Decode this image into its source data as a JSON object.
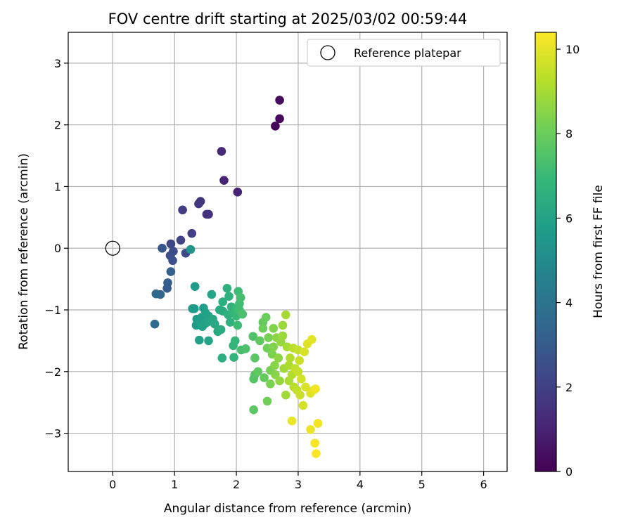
{
  "chart_data": {
    "type": "scatter",
    "title": "FOV centre drift starting at 2025/03/02 00:59:44",
    "xlabel": "Angular distance from reference (arcmin)",
    "ylabel": "Rotation from reference (arcmin)",
    "xlim": [
      -0.72,
      6.38
    ],
    "ylim": [
      -3.62,
      3.5
    ],
    "xticks": [
      0,
      1,
      2,
      3,
      4,
      5,
      6
    ],
    "yticks": [
      -3,
      -2,
      -1,
      0,
      1,
      2,
      3
    ],
    "grid": true,
    "legend": {
      "position": "top-right",
      "entries": [
        "Reference platepar"
      ]
    },
    "reference_point": {
      "x": 0,
      "y": 0,
      "label": "Reference platepar"
    },
    "colorbar": {
      "label": "Hours from first FF file",
      "colormap": "viridis",
      "range": [
        0,
        10.4
      ],
      "ticks": [
        0,
        2,
        4,
        6,
        8,
        10
      ]
    },
    "points": [
      [
        2.63,
        1.98,
        0.1
      ],
      [
        2.7,
        2.1,
        0.2
      ],
      [
        2.7,
        2.4,
        0.3
      ],
      [
        2.02,
        0.91,
        1.0
      ],
      [
        1.8,
        1.1,
        1.1
      ],
      [
        1.76,
        1.57,
        1.2
      ],
      [
        1.55,
        0.55,
        1.4
      ],
      [
        1.52,
        0.55,
        1.5
      ],
      [
        1.42,
        0.76,
        1.6
      ],
      [
        1.39,
        0.72,
        1.7
      ],
      [
        1.13,
        0.62,
        1.9
      ],
      [
        1.28,
        0.24,
        2.0
      ],
      [
        1.1,
        0.13,
        2.1
      ],
      [
        0.94,
        0.07,
        2.2
      ],
      [
        1.18,
        -0.08,
        2.3
      ],
      [
        0.98,
        -0.05,
        2.4
      ],
      [
        0.93,
        -0.12,
        2.5
      ],
      [
        0.97,
        -0.2,
        2.6
      ],
      [
        0.8,
        0.0,
        2.8
      ],
      [
        0.88,
        -0.65,
        3.0
      ],
      [
        0.89,
        -0.56,
        3.1
      ],
      [
        0.94,
        -0.38,
        3.2
      ],
      [
        0.77,
        -0.75,
        3.3
      ],
      [
        0.7,
        -0.74,
        3.5
      ],
      [
        0.68,
        -1.23,
        3.6
      ],
      [
        1.26,
        -0.02,
        5.4
      ],
      [
        1.33,
        -0.62,
        5.6
      ],
      [
        1.29,
        -0.98,
        5.6
      ],
      [
        1.32,
        -0.98,
        5.7
      ],
      [
        1.36,
        -1.15,
        5.7
      ],
      [
        1.35,
        -1.25,
        5.7
      ],
      [
        1.4,
        -1.2,
        5.8
      ],
      [
        1.44,
        -1.12,
        5.8
      ],
      [
        1.47,
        -0.97,
        5.8
      ],
      [
        1.45,
        -1.27,
        5.9
      ],
      [
        1.4,
        -1.49,
        5.9
      ],
      [
        1.5,
        -1.05,
        5.9
      ],
      [
        1.5,
        -1.22,
        6.0
      ],
      [
        1.55,
        -1.1,
        6.0
      ],
      [
        1.53,
        -1.2,
        6.1
      ],
      [
        1.55,
        -1.5,
        6.1
      ],
      [
        1.6,
        -0.75,
        6.1
      ],
      [
        1.62,
        -1.15,
        6.2
      ],
      [
        1.65,
        -1.23,
        6.2
      ],
      [
        1.7,
        -1.35,
        6.3
      ],
      [
        1.73,
        -1.0,
        6.3
      ],
      [
        1.75,
        -1.32,
        6.4
      ],
      [
        1.78,
        -1.02,
        6.4
      ],
      [
        1.78,
        -0.87,
        6.5
      ],
      [
        1.77,
        -1.78,
        6.5
      ],
      [
        1.85,
        -0.65,
        6.6
      ],
      [
        1.88,
        -0.78,
        6.6
      ],
      [
        1.87,
        -1.08,
        6.6
      ],
      [
        1.9,
        -1.2,
        6.7
      ],
      [
        1.92,
        -0.95,
        6.7
      ],
      [
        1.95,
        -1.05,
        6.8
      ],
      [
        1.95,
        -1.58,
        6.8
      ],
      [
        1.96,
        -1.77,
        6.8
      ],
      [
        1.98,
        -1.5,
        6.9
      ],
      [
        2.0,
        -0.98,
        7.0
      ],
      [
        2.0,
        -1.1,
        7.0
      ],
      [
        2.02,
        -1.25,
        7.1
      ],
      [
        2.03,
        -0.7,
        7.1
      ],
      [
        2.05,
        -0.9,
        7.2
      ],
      [
        2.05,
        -1.0,
        7.2
      ],
      [
        2.07,
        -0.8,
        7.3
      ],
      [
        2.08,
        -1.65,
        7.3
      ],
      [
        2.1,
        -1.07,
        7.4
      ],
      [
        2.15,
        -1.63,
        7.4
      ],
      [
        2.27,
        -1.43,
        7.5
      ],
      [
        2.28,
        -2.12,
        7.6
      ],
      [
        2.3,
        -2.05,
        7.6
      ],
      [
        2.28,
        -2.62,
        7.7
      ],
      [
        2.3,
        -1.78,
        7.7
      ],
      [
        2.35,
        -2.0,
        7.8
      ],
      [
        2.38,
        -1.5,
        7.8
      ],
      [
        2.43,
        -1.2,
        7.9
      ],
      [
        2.45,
        -2.1,
        7.9
      ],
      [
        2.43,
        -1.3,
        8.0
      ],
      [
        2.48,
        -1.12,
        8.0
      ],
      [
        2.5,
        -1.62,
        8.1
      ],
      [
        2.5,
        -2.48,
        8.1
      ],
      [
        2.52,
        -1.45,
        8.2
      ],
      [
        2.55,
        -1.98,
        8.2
      ],
      [
        2.55,
        -2.2,
        8.3
      ],
      [
        2.58,
        -1.72,
        8.3
      ],
      [
        2.6,
        -1.3,
        8.4
      ],
      [
        2.6,
        -1.6,
        8.4
      ],
      [
        2.62,
        -1.9,
        8.5
      ],
      [
        2.63,
        -2.05,
        8.5
      ],
      [
        2.65,
        -1.45,
        8.6
      ],
      [
        2.68,
        -1.78,
        8.6
      ],
      [
        2.7,
        -2.15,
        8.7
      ],
      [
        2.72,
        -1.52,
        8.7
      ],
      [
        2.75,
        -1.25,
        8.8
      ],
      [
        2.75,
        -1.42,
        8.8
      ],
      [
        2.77,
        -1.95,
        8.9
      ],
      [
        2.8,
        -2.38,
        8.9
      ],
      [
        2.8,
        -1.08,
        9.0
      ],
      [
        2.82,
        -1.6,
        9.0
      ],
      [
        2.85,
        -1.9,
        9.1
      ],
      [
        2.85,
        -2.15,
        9.1
      ],
      [
        2.87,
        -1.78,
        9.2
      ],
      [
        2.9,
        -2.05,
        9.2
      ],
      [
        2.92,
        -1.62,
        9.3
      ],
      [
        2.93,
        -2.25,
        9.3
      ],
      [
        2.95,
        -1.95,
        9.4
      ],
      [
        2.98,
        -2.3,
        9.4
      ],
      [
        3.0,
        -1.65,
        9.5
      ],
      [
        3.0,
        -2.0,
        9.5
      ],
      [
        3.02,
        -1.82,
        9.6
      ],
      [
        3.03,
        -2.38,
        9.6
      ],
      [
        3.05,
        -2.12,
        9.7
      ],
      [
        3.08,
        -2.55,
        9.7
      ],
      [
        3.1,
        -1.68,
        9.8
      ],
      [
        3.12,
        -2.25,
        9.8
      ],
      [
        3.15,
        -1.55,
        9.9
      ],
      [
        3.2,
        -2.35,
        9.9
      ],
      [
        3.22,
        -1.48,
        10.0
      ],
      [
        3.25,
        -2.3,
        10.0
      ],
      [
        2.9,
        -2.8,
        10.1
      ],
      [
        3.2,
        -2.94,
        10.1
      ],
      [
        3.28,
        -2.28,
        10.2
      ],
      [
        3.32,
        -2.84,
        10.2
      ],
      [
        3.27,
        -3.16,
        10.3
      ],
      [
        3.29,
        -3.33,
        10.4
      ]
    ]
  }
}
